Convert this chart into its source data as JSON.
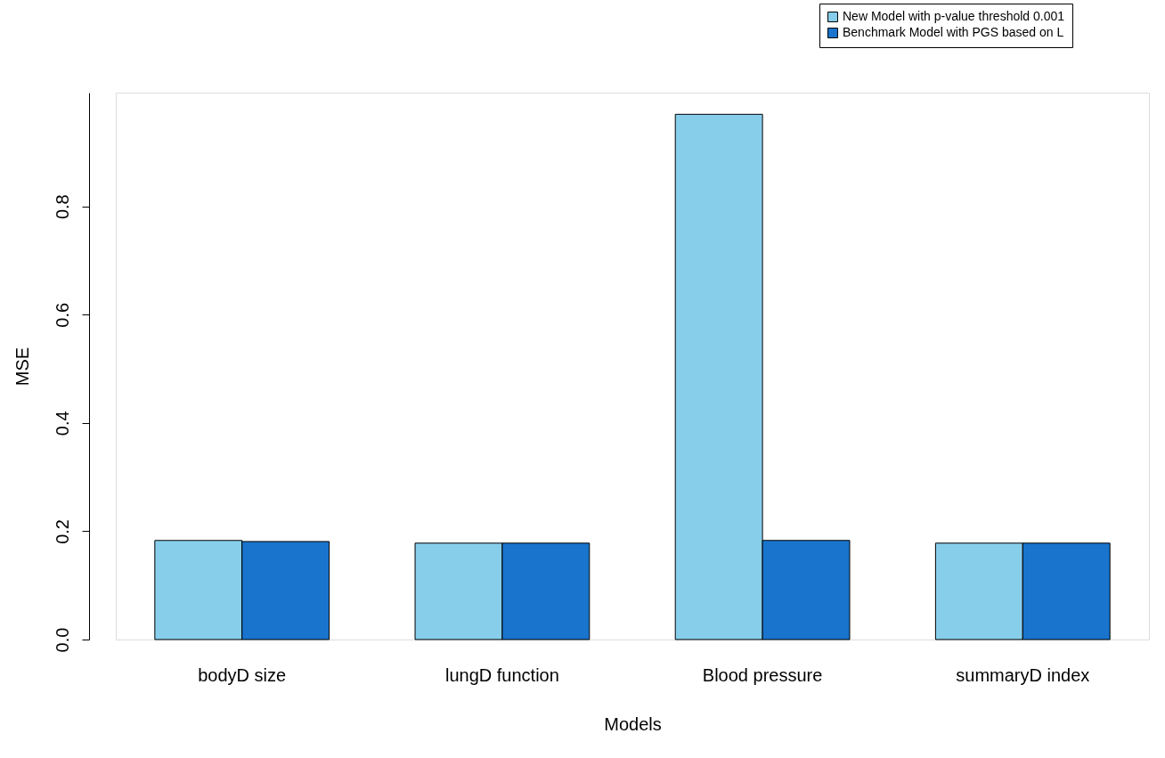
{
  "chart_data": {
    "type": "bar",
    "xlabel": "Models",
    "ylabel": "MSE",
    "categories": [
      "bodyD size",
      "lungD function",
      "Blood pressure",
      "summaryD index"
    ],
    "series": [
      {
        "name": "New Model with p-value threshold 0.001",
        "color": "#87ceeb",
        "values": [
          0.183,
          0.178,
          0.97,
          0.178
        ]
      },
      {
        "name": "Benchmark Model with PGS based on L",
        "color": "#1874cd",
        "values": [
          0.181,
          0.178,
          0.183,
          0.178
        ]
      }
    ],
    "ylim": [
      0,
      1.01
    ],
    "yticks": [
      {
        "value": 0,
        "label": "0.0"
      },
      0.2,
      0.4,
      0.6,
      0.8
    ],
    "grid": false,
    "legend": "top right"
  }
}
